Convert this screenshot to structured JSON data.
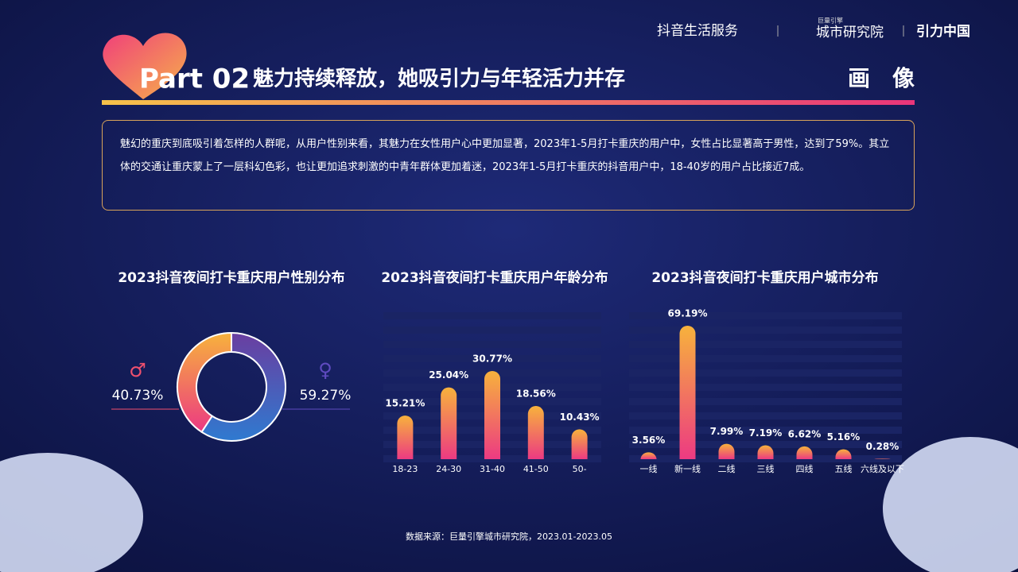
{
  "header": {
    "brand1": "抖音生活服务",
    "brand2_small": "巨量引擎",
    "brand2": "城市研究院",
    "brand3": "引力中国"
  },
  "title": {
    "part": "Part 02",
    "text": "魅力持续释放，她吸引力与年轻活力并存",
    "tag": "画　像"
  },
  "intro": "魅幻的重庆到底吸引着怎样的人群呢，从用户性别来看，其魅力在女性用户心中更加显著，2023年1-5月打卡重庆的用户中，女性占比显著高于男性，达到了59%。其立体的交通让重庆蒙上了一层科幻色彩，也让更加追求刺激的中青年群体更加着迷，2023年1-5月打卡重庆的抖音用户中，18-40岁的用户占比接近7成。",
  "chart_data": [
    {
      "type": "pie",
      "title": "2023抖音夜间打卡重庆用户性别分布",
      "categories": [
        "♂",
        "♀"
      ],
      "values": [
        40.73,
        59.27
      ],
      "value_labels": [
        "40.73%",
        "59.27%"
      ],
      "colors": [
        "#f0506e",
        "#5f4bc0"
      ]
    },
    {
      "type": "bar",
      "title": "2023抖音夜间打卡重庆用户年龄分布",
      "categories": [
        "18-23",
        "24-30",
        "31-40",
        "41-50",
        "50-"
      ],
      "values": [
        15.21,
        25.04,
        30.77,
        18.56,
        10.43
      ],
      "value_labels": [
        "15.21%",
        "25.04%",
        "30.77%",
        "18.56%",
        "10.43%"
      ],
      "color": "#f2a33a"
    },
    {
      "type": "bar",
      "title": "2023抖音夜间打卡重庆用户城市分布",
      "categories": [
        "一线",
        "新一线",
        "二线",
        "三线",
        "四线",
        "五线",
        "六线及以下"
      ],
      "values": [
        3.56,
        69.19,
        7.99,
        7.19,
        6.62,
        5.16,
        0.28
      ],
      "value_labels": [
        "3.56%",
        "69.19%",
        "7.99%",
        "7.19%",
        "6.62%",
        "5.16%",
        "0.28%"
      ],
      "color": "#f2a33a"
    }
  ],
  "source": "数据来源：巨量引擎城市研究院，2023.01-2023.05"
}
